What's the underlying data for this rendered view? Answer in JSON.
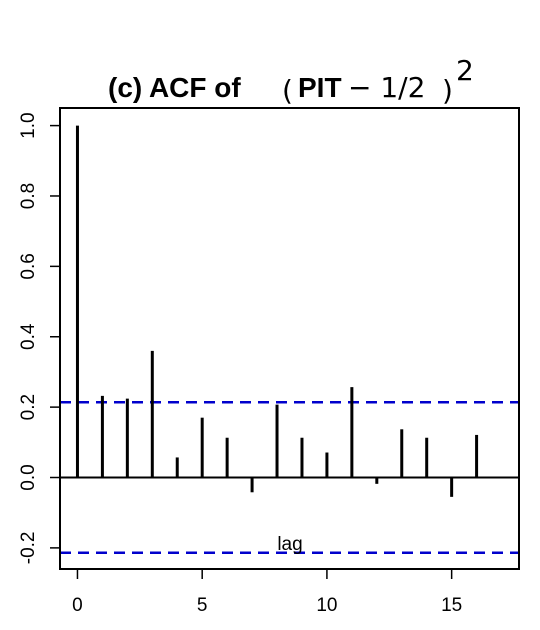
{
  "chart_data": {
    "type": "bar",
    "title": {
      "prefix": "(c) ACF of",
      "open_paren": "(",
      "pit": "PIT",
      "rest": " − 1/2",
      "close_paren": ")",
      "exponent": "2"
    },
    "xlabel": "lag",
    "ylabel": "",
    "x": [
      0,
      1,
      2,
      3,
      4,
      5,
      6,
      7,
      8,
      9,
      10,
      11,
      12,
      13,
      14,
      15,
      16,
      17
    ],
    "values": [
      1.0,
      0.232,
      0.224,
      0.36,
      0.057,
      0.17,
      0.113,
      -0.042,
      0.207,
      0.113,
      0.071,
      0.257,
      -0.018,
      0.137,
      0.113,
      -0.055,
      0.121,
      0.0
    ],
    "confidence_bound": 0.214,
    "xlim": [
      -0.7,
      17.7
    ],
    "ylim": [
      -0.26,
      1.05
    ],
    "xticks": [
      0,
      5,
      10,
      15
    ],
    "xtick_labels": [
      "0",
      "5",
      "10",
      "15"
    ],
    "yticks": [
      -0.2,
      0.0,
      0.2,
      0.4,
      0.6,
      0.8,
      1.0
    ],
    "ytick_labels": [
      "-0.2",
      "0.0",
      "0.2",
      "0.4",
      "0.6",
      "0.8",
      "1.0"
    ],
    "grid": false,
    "colors": {
      "bars": "#000000",
      "bounds": "#0000cc",
      "zero_line": "#000000"
    }
  }
}
